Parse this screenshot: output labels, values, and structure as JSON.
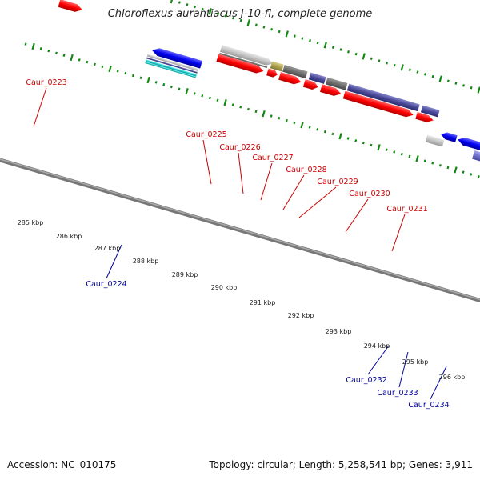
{
  "title": "Chloroflexus aurantiacus J-10-fl, complete genome",
  "footer": {
    "accession": "Accession: NC_010175",
    "stats": "Topology: circular; Length: 5,258,541 bp; Genes: 3,911"
  },
  "colors": {
    "forward_cds": "#ff0000",
    "reverse_cds": "#0000ff",
    "forward_label": "#cc0000",
    "reverse_label": "#000099",
    "tick": "#118811",
    "backbone": "#888888"
  },
  "ticks": [
    {
      "label": "285 kbp"
    },
    {
      "label": "286 kbp"
    },
    {
      "label": "287 kbp"
    },
    {
      "label": "288 kbp"
    },
    {
      "label": "289 kbp"
    },
    {
      "label": "290 kbp"
    },
    {
      "label": "291 kbp"
    },
    {
      "label": "292 kbp"
    },
    {
      "label": "293 kbp"
    },
    {
      "label": "294 kbp"
    },
    {
      "label": "295 kbp"
    },
    {
      "label": "296 kbp"
    }
  ],
  "genes_forward": [
    {
      "label": "Caur_0223"
    },
    {
      "label": "Caur_0225"
    },
    {
      "label": "Caur_0226"
    },
    {
      "label": "Caur_0227"
    },
    {
      "label": "Caur_0228"
    },
    {
      "label": "Caur_0229"
    },
    {
      "label": "Caur_0230"
    },
    {
      "label": "Caur_0231"
    }
  ],
  "genes_reverse": [
    {
      "label": "Caur_0224"
    },
    {
      "label": "Caur_0232"
    },
    {
      "label": "Caur_0233"
    },
    {
      "label": "Caur_0234"
    }
  ]
}
